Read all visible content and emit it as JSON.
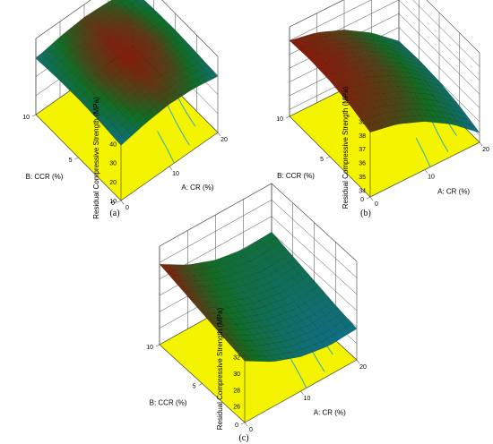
{
  "figure": {
    "panel_labels": [
      "(a)",
      "(b)",
      "(c)"
    ]
  },
  "colors": {
    "floor": "#f4f400",
    "contour": "#33a8c8",
    "grid": "#444444",
    "surface_low": "#0e6f86",
    "surface_mid": "#0f6e24",
    "surface_high": "#8a1a0a"
  },
  "chart_data": [
    {
      "type": "surface",
      "panel": "(a)",
      "zlabel": "Residual Compressive Strength (MPa)",
      "xlabel": "A: CR (%)",
      "ylabel": "B: CCR (%)",
      "x_ticks": [
        "0",
        "10",
        "20"
      ],
      "y_ticks": [
        "0",
        "5",
        "10"
      ],
      "z_ticks": [
        "10",
        "20",
        "30",
        "40",
        "50"
      ],
      "x_range": [
        0,
        20
      ],
      "y_range": [
        0,
        10
      ],
      "z_range": [
        10,
        50
      ],
      "x": [
        0,
        5,
        10,
        15,
        20
      ],
      "y": [
        0,
        2.5,
        5,
        7.5,
        10
      ],
      "z": [
        [
          39.0,
          41.5,
          42.8,
          42.0,
          39.5
        ],
        [
          40.2,
          42.7,
          44.0,
          43.2,
          40.7
        ],
        [
          40.8,
          43.3,
          44.6,
          43.8,
          41.3
        ],
        [
          40.5,
          43.0,
          44.3,
          43.5,
          41.0
        ],
        [
          39.5,
          42.0,
          43.3,
          42.5,
          40.0
        ]
      ]
    },
    {
      "type": "surface",
      "panel": "(b)",
      "zlabel": "Residual Compressive Strength (MPa)",
      "xlabel": "A: CR (%)",
      "ylabel": "B: CCR (%)",
      "x_ticks": [
        "0",
        "10",
        "20"
      ],
      "y_ticks": [
        "0",
        "5",
        "10"
      ],
      "z_ticks": [
        "34",
        "35",
        "36",
        "37",
        "38",
        "39",
        "40"
      ],
      "x_range": [
        0,
        20
      ],
      "y_range": [
        0,
        10
      ],
      "z_range": [
        33.5,
        40
      ],
      "x": [
        0,
        5,
        10,
        15,
        20
      ],
      "y": [
        0,
        2.5,
        5,
        7.5,
        10
      ],
      "z": [
        [
          38.2,
          37.8,
          37.0,
          35.8,
          34.2
        ],
        [
          38.7,
          38.3,
          37.5,
          36.3,
          34.7
        ],
        [
          39.0,
          38.6,
          37.8,
          36.6,
          35.0
        ],
        [
          39.1,
          38.7,
          37.9,
          36.7,
          35.1
        ],
        [
          39.0,
          38.6,
          37.8,
          36.6,
          35.0
        ]
      ]
    },
    {
      "type": "surface",
      "panel": "(c)",
      "zlabel": "Residual Compressive Strength  (MPa)",
      "xlabel": "A: CR (%)",
      "ylabel": "B: CCR (%)",
      "x_ticks": [
        "0",
        "10",
        "20"
      ],
      "y_ticks": [
        "0",
        "5",
        "10"
      ],
      "z_ticks": [
        "26",
        "28",
        "30",
        "32",
        "34",
        "36"
      ],
      "x_range": [
        0,
        20
      ],
      "y_range": [
        0,
        10
      ],
      "z_range": [
        24,
        36
      ],
      "x": [
        0,
        5,
        10,
        15,
        20
      ],
      "y": [
        0,
        2.5,
        5,
        7.5,
        10
      ],
      "z": [
        [
          31.5,
          29.5,
          28.2,
          27.6,
          27.8
        ],
        [
          32.0,
          30.0,
          28.7,
          28.1,
          28.3
        ],
        [
          32.6,
          30.6,
          29.3,
          28.7,
          28.9
        ],
        [
          33.2,
          31.2,
          29.9,
          29.3,
          29.5
        ],
        [
          33.8,
          31.8,
          30.5,
          29.9,
          30.1
        ]
      ]
    }
  ]
}
